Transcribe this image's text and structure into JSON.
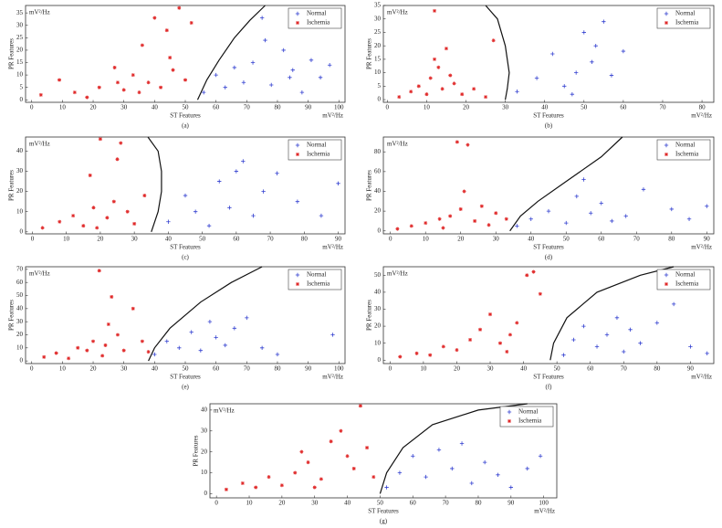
{
  "chart_data": [
    {
      "type": "scatter",
      "title": "(a)",
      "x_label": "ST Features",
      "y_label": "PR Features",
      "x_unit": "mV²/Hz",
      "y_unit": "mV²/Hz",
      "legend": "upper right",
      "xlim": [
        -2,
        102
      ],
      "ylim": [
        -1,
        38
      ],
      "xticks": [
        0,
        10,
        20,
        30,
        40,
        50,
        60,
        70,
        80,
        90,
        100
      ],
      "yticks": [
        0,
        5,
        10,
        15,
        20,
        25,
        30,
        35
      ],
      "series": [
        {
          "name": "Normal",
          "color": "#3340d0",
          "marker": "plus",
          "x": [
            56,
            60,
            63,
            66,
            69,
            72,
            75,
            78,
            82,
            85,
            88,
            91,
            94,
            97,
            76,
            84
          ],
          "values": [
            3,
            10,
            5,
            13,
            7,
            15,
            33,
            6,
            20,
            12,
            3,
            16,
            9,
            14,
            24,
            9
          ]
        },
        {
          "name": "Ischemia",
          "color": "#e02a2a",
          "marker": "star",
          "x": [
            3,
            9,
            14,
            18,
            22,
            27,
            30,
            33,
            36,
            38,
            40,
            42,
            44,
            46,
            48,
            50,
            52,
            35,
            45,
            28
          ],
          "values": [
            2,
            8,
            3,
            1,
            5,
            13,
            4,
            10,
            22,
            7,
            33,
            5,
            28,
            12,
            37,
            8,
            31,
            3,
            17,
            7
          ]
        }
      ],
      "boundary": {
        "x": [
          54,
          57,
          61,
          66,
          71,
          76
        ],
        "values": [
          0,
          8,
          16,
          25,
          32,
          38
        ]
      }
    },
    {
      "type": "scatter",
      "title": "(b)",
      "x_label": "ST Features",
      "y_label": "PR Features",
      "x_unit": "mV²/Hz",
      "y_unit": "mV²/Hz",
      "legend": "upper right",
      "xlim": [
        -1,
        83
      ],
      "ylim": [
        -1,
        35
      ],
      "xticks": [
        0,
        10,
        20,
        30,
        40,
        50,
        60,
        70,
        80
      ],
      "yticks": [
        0,
        5,
        10,
        15,
        20,
        25,
        30,
        35
      ],
      "series": [
        {
          "name": "Normal",
          "color": "#3340d0",
          "marker": "plus",
          "x": [
            33,
            38,
            42,
            45,
            48,
            50,
            52,
            55,
            57,
            60,
            47,
            53
          ],
          "values": [
            3,
            8,
            17,
            5,
            10,
            25,
            14,
            29,
            9,
            18,
            2,
            20
          ]
        },
        {
          "name": "Ischemia",
          "color": "#e02a2a",
          "marker": "star",
          "x": [
            3,
            6,
            8,
            10,
            11,
            12,
            13,
            14,
            15,
            17,
            19,
            22,
            25,
            27,
            12,
            16
          ],
          "values": [
            1,
            3,
            5,
            2,
            8,
            33,
            12,
            4,
            19,
            6,
            2,
            4,
            1,
            22,
            15,
            9
          ]
        }
      ],
      "boundary": {
        "x": [
          25,
          28,
          30,
          31,
          30.5,
          30
        ],
        "values": [
          35,
          30,
          20,
          10,
          4,
          0
        ]
      }
    },
    {
      "type": "scatter",
      "title": "(c)",
      "x_label": "ST Features",
      "y_label": "PR Features",
      "x_unit": "mV²/Hz",
      "y_unit": "mV²/Hz",
      "legend": "upper right",
      "xlim": [
        -2,
        92
      ],
      "ylim": [
        -1,
        47
      ],
      "xticks": [
        0,
        10,
        20,
        30,
        40,
        50,
        60,
        70,
        80,
        90
      ],
      "yticks": [
        0,
        10,
        20,
        30,
        40
      ],
      "series": [
        {
          "name": "Normal",
          "color": "#3340d0",
          "marker": "plus",
          "x": [
            40,
            45,
            48,
            52,
            55,
            58,
            60,
            62,
            65,
            68,
            72,
            78,
            85,
            90
          ],
          "values": [
            5,
            18,
            10,
            3,
            25,
            12,
            30,
            35,
            8,
            20,
            29,
            15,
            8,
            24
          ]
        },
        {
          "name": "Ischemia",
          "color": "#e02a2a",
          "marker": "star",
          "x": [
            3,
            8,
            12,
            15,
            18,
            20,
            22,
            24,
            26,
            28,
            30,
            33,
            17,
            25,
            19
          ],
          "values": [
            2,
            5,
            8,
            3,
            12,
            46,
            7,
            15,
            44,
            10,
            4,
            18,
            28,
            36,
            2
          ]
        }
      ],
      "boundary": {
        "x": [
          34,
          37,
          38,
          38,
          37,
          35
        ],
        "values": [
          47,
          40,
          30,
          20,
          10,
          0
        ]
      }
    },
    {
      "type": "scatter",
      "title": "(d)",
      "x_label": "ST Features",
      "y_label": "PR Features",
      "x_unit": "mV²/Hz",
      "y_unit": "mV²/Hz",
      "legend": "upper right",
      "xlim": [
        -2,
        92
      ],
      "ylim": [
        -3,
        95
      ],
      "xticks": [
        0,
        10,
        20,
        30,
        40,
        50,
        60,
        70,
        80,
        90
      ],
      "yticks": [
        0,
        20,
        40,
        60,
        80
      ],
      "series": [
        {
          "name": "Normal",
          "color": "#3340d0",
          "marker": "plus",
          "x": [
            36,
            40,
            45,
            50,
            53,
            55,
            57,
            60,
            63,
            67,
            72,
            80,
            85,
            90
          ],
          "values": [
            5,
            12,
            20,
            8,
            35,
            52,
            18,
            28,
            10,
            15,
            42,
            22,
            12,
            25
          ]
        },
        {
          "name": "Ischemia",
          "color": "#e02a2a",
          "marker": "star",
          "x": [
            2,
            6,
            10,
            14,
            17,
            19,
            20,
            22,
            24,
            26,
            28,
            30,
            33,
            21,
            15
          ],
          "values": [
            2,
            5,
            8,
            12,
            15,
            90,
            22,
            87,
            10,
            25,
            6,
            18,
            12,
            40,
            3
          ]
        }
      ],
      "boundary": {
        "x": [
          34,
          37,
          42,
          50,
          60,
          66
        ],
        "values": [
          0,
          15,
          30,
          50,
          75,
          95
        ]
      }
    },
    {
      "type": "scatter",
      "title": "(e)",
      "x_label": "ST Features",
      "y_label": "PR Features",
      "x_unit": "mV²/Hz",
      "y_unit": "mV²/Hz",
      "legend": "upper right",
      "xlim": [
        -2,
        102
      ],
      "ylim": [
        -2,
        72
      ],
      "xticks": [
        0,
        10,
        20,
        30,
        40,
        50,
        60,
        70,
        80,
        90,
        100
      ],
      "yticks": [
        0,
        10,
        20,
        30,
        40,
        50,
        60,
        70
      ],
      "series": [
        {
          "name": "Normal",
          "color": "#3340d0",
          "marker": "plus",
          "x": [
            40,
            44,
            48,
            52,
            55,
            58,
            60,
            63,
            66,
            70,
            75,
            80,
            98
          ],
          "values": [
            5,
            15,
            10,
            22,
            8,
            30,
            18,
            12,
            25,
            33,
            10,
            5,
            20
          ]
        },
        {
          "name": "Ischemia",
          "color": "#e02a2a",
          "marker": "star",
          "x": [
            4,
            8,
            12,
            15,
            18,
            20,
            22,
            24,
            26,
            28,
            30,
            33,
            36,
            38,
            25,
            23
          ],
          "values": [
            3,
            6,
            2,
            10,
            8,
            15,
            69,
            12,
            49,
            20,
            8,
            40,
            15,
            7,
            28,
            4
          ]
        }
      ],
      "boundary": {
        "x": [
          38,
          40,
          45,
          55,
          65,
          75
        ],
        "values": [
          0,
          10,
          25,
          45,
          60,
          72
        ]
      }
    },
    {
      "type": "scatter",
      "title": "(f)",
      "x_label": "ST Features",
      "y_label": "PR Features",
      "x_unit": "mV²/Hz",
      "y_unit": "mV²/Hz",
      "legend": "upper right",
      "xlim": [
        -2,
        97
      ],
      "ylim": [
        -2,
        55
      ],
      "xticks": [
        0,
        10,
        20,
        30,
        40,
        50,
        60,
        70,
        80,
        90
      ],
      "yticks": [
        0,
        10,
        20,
        30,
        40,
        50
      ],
      "series": [
        {
          "name": "Normal",
          "color": "#3340d0",
          "marker": "plus",
          "x": [
            52,
            55,
            58,
            62,
            65,
            68,
            70,
            72,
            75,
            80,
            85,
            90,
            95
          ],
          "values": [
            3,
            12,
            20,
            8,
            15,
            25,
            5,
            18,
            10,
            22,
            33,
            8,
            4
          ]
        },
        {
          "name": "Ischemia",
          "color": "#e02a2a",
          "marker": "star",
          "x": [
            3,
            8,
            12,
            16,
            20,
            24,
            27,
            30,
            33,
            36,
            38,
            41,
            43,
            45,
            35
          ],
          "values": [
            2,
            4,
            3,
            8,
            6,
            12,
            18,
            27,
            10,
            15,
            22,
            50,
            52,
            39,
            5
          ]
        }
      ],
      "boundary": {
        "x": [
          48,
          49,
          53,
          62,
          75,
          85
        ],
        "values": [
          0,
          10,
          25,
          40,
          50,
          55
        ]
      }
    },
    {
      "type": "scatter",
      "title": "(g)",
      "x_label": "ST Features",
      "y_label": "PR Features",
      "x_unit": "mV²/Hz",
      "y_unit": "mV²/Hz",
      "legend": "upper right",
      "xlim": [
        -2,
        104
      ],
      "ylim": [
        -2,
        43
      ],
      "xticks": [
        0,
        10,
        20,
        30,
        40,
        50,
        60,
        70,
        80,
        90,
        100
      ],
      "yticks": [
        0,
        10,
        20,
        30,
        40
      ],
      "series": [
        {
          "name": "Normal",
          "color": "#3340d0",
          "marker": "plus",
          "x": [
            52,
            56,
            60,
            64,
            68,
            72,
            75,
            78,
            82,
            86,
            90,
            95,
            99
          ],
          "values": [
            3,
            10,
            18,
            8,
            21,
            12,
            24,
            5,
            15,
            9,
            3,
            12,
            18
          ]
        },
        {
          "name": "Ischemia",
          "color": "#e02a2a",
          "marker": "star",
          "x": [
            3,
            8,
            12,
            16,
            20,
            24,
            28,
            32,
            35,
            38,
            40,
            42,
            44,
            46,
            48,
            30,
            26
          ],
          "values": [
            2,
            5,
            3,
            8,
            4,
            10,
            15,
            7,
            25,
            30,
            18,
            12,
            42,
            22,
            8,
            3,
            20
          ]
        }
      ],
      "boundary": {
        "x": [
          50,
          52,
          57,
          66,
          80,
          95
        ],
        "values": [
          0,
          10,
          22,
          33,
          40,
          43
        ]
      }
    }
  ]
}
